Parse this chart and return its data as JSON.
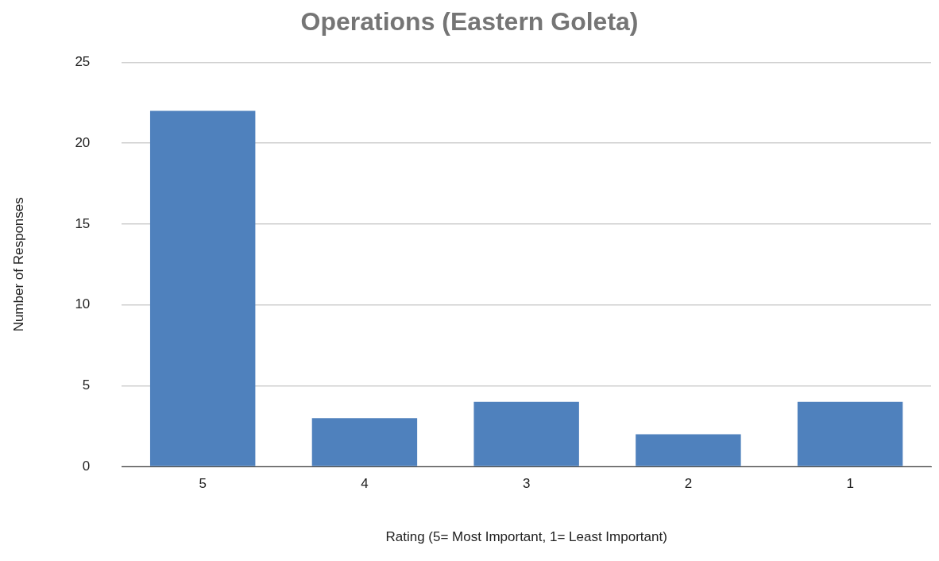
{
  "chart_data": {
    "type": "bar",
    "title": "Operations (Eastern Goleta)",
    "xlabel": "Rating (5= Most Important, 1= Least Important)",
    "ylabel": "Number of Responses",
    "categories": [
      "5",
      "4",
      "3",
      "2",
      "1"
    ],
    "values": [
      22,
      3,
      4,
      2,
      4
    ],
    "color": "#4f81bd",
    "ylim": [
      0,
      25
    ],
    "yticks": [
      0,
      5,
      10,
      15,
      20,
      25
    ],
    "grid": "y",
    "legend": false
  }
}
